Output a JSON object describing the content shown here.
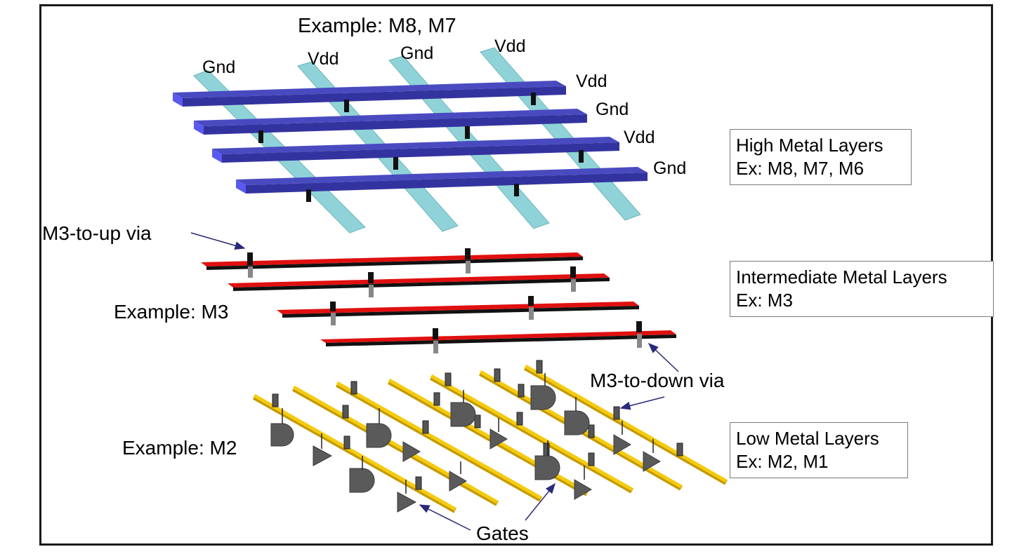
{
  "top_example": "Example: M8, M7",
  "vertical_rails": [
    "Gnd",
    "Vdd",
    "Gnd",
    "Vdd"
  ],
  "horizontal_rails": [
    "Vdd",
    "Gnd",
    "Vdd",
    "Gnd"
  ],
  "m3_up_via": "M3-to-up via",
  "m3_example": "Example: M3",
  "m3_down_via": "M3-to-down via",
  "m2_example": "Example: M2",
  "gates": "Gates",
  "boxes": {
    "high": {
      "title": "High Metal Layers",
      "sub": "Ex: M8, M7, M6"
    },
    "intermediate": {
      "title": "Intermediate Metal Layers",
      "sub": "Ex: M3"
    },
    "low": {
      "title": "Low Metal Layers",
      "sub": "Ex: M2, M1"
    }
  },
  "colors": {
    "high_horizontal": "#3a3aa8",
    "high_vertical": "#8fd3d8",
    "intermediate": "#e01010",
    "low": "#f2c200",
    "via": "#111111",
    "gate": "#555555"
  }
}
